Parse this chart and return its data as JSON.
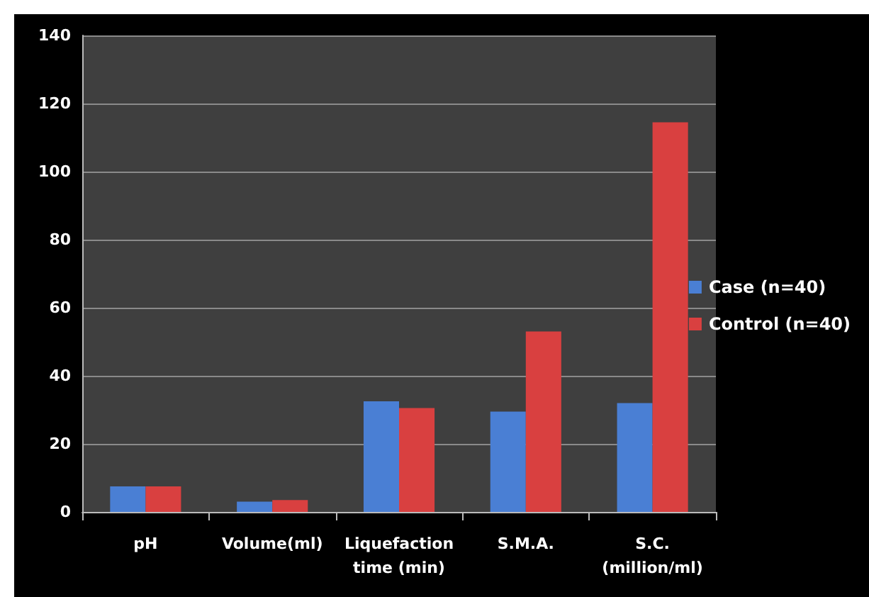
{
  "chart_data": {
    "type": "bar",
    "categories": [
      "pH",
      "Volume(ml)",
      "Liquefaction\ntime (min)",
      "S.M.A.",
      "S.C.\n(million/ml)"
    ],
    "series": [
      {
        "name": "Case (n=40)",
        "color": "#4a7fd4",
        "values": [
          7.5,
          3,
          32.5,
          29.5,
          32
        ]
      },
      {
        "name": "Control (n=40)",
        "color": "#d94040",
        "values": [
          7.5,
          3.5,
          30.5,
          53,
          114.5
        ]
      }
    ],
    "ylim": [
      0,
      140
    ],
    "yticks": [
      0,
      20,
      40,
      60,
      80,
      100,
      120,
      140
    ],
    "grid": "y",
    "legend": "right"
  }
}
